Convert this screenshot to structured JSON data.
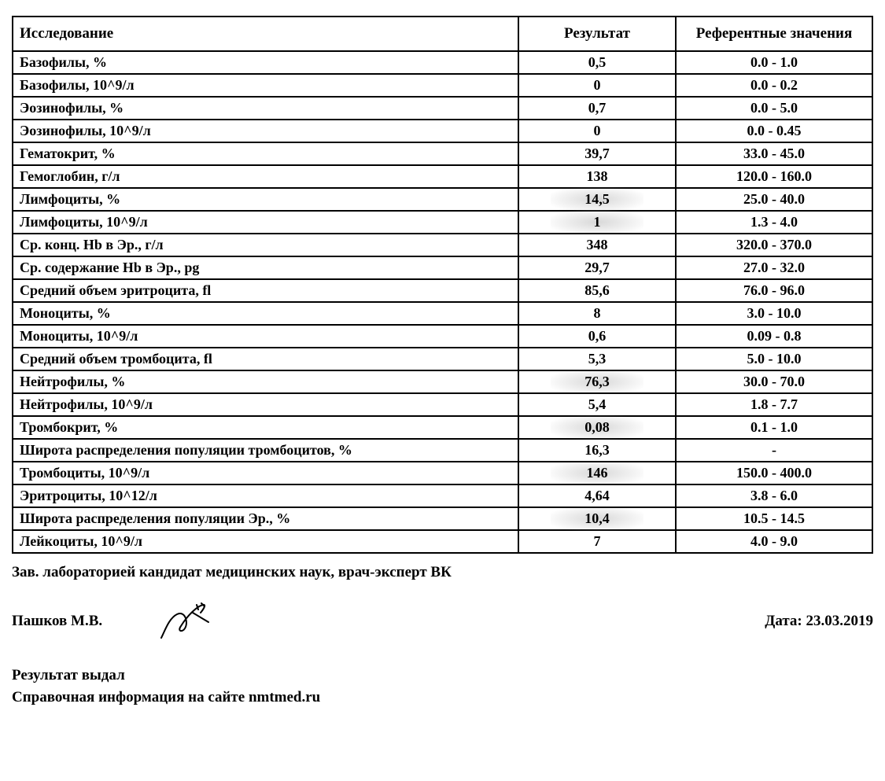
{
  "table": {
    "columns": [
      "Исследование",
      "Результат",
      "Референтные значения"
    ],
    "rows": [
      {
        "name": "Базофилы, %",
        "result": "0,5",
        "ref": "0.0 - 1.0",
        "hl": false
      },
      {
        "name": "Базофилы, 10^9/л",
        "result": "0",
        "ref": "0.0 - 0.2",
        "hl": false
      },
      {
        "name": "Эозинофилы, %",
        "result": "0,7",
        "ref": "0.0 - 5.0",
        "hl": false
      },
      {
        "name": "Эозинофилы, 10^9/л",
        "result": "0",
        "ref": "0.0 - 0.45",
        "hl": false
      },
      {
        "name": "Гематокрит, %",
        "result": "39,7",
        "ref": "33.0 - 45.0",
        "hl": false
      },
      {
        "name": "Гемоглобин, г/л",
        "result": "138",
        "ref": "120.0 - 160.0",
        "hl": false
      },
      {
        "name": "Лимфоциты, %",
        "result": "14,5",
        "ref": "25.0 - 40.0",
        "hl": true
      },
      {
        "name": "Лимфоциты, 10^9/л",
        "result": "1",
        "ref": "1.3 - 4.0",
        "hl": true
      },
      {
        "name": "Ср. конц. Hb в Эр., г/л",
        "result": "348",
        "ref": "320.0 - 370.0",
        "hl": false
      },
      {
        "name": "Ср. содержание Hb в Эр., pg",
        "result": "29,7",
        "ref": "27.0 - 32.0",
        "hl": false
      },
      {
        "name": "Средний объем эритроцита, fl",
        "result": "85,6",
        "ref": "76.0 - 96.0",
        "hl": false
      },
      {
        "name": "Моноциты, %",
        "result": "8",
        "ref": "3.0 - 10.0",
        "hl": false
      },
      {
        "name": "Моноциты, 10^9/л",
        "result": "0,6",
        "ref": "0.09 - 0.8",
        "hl": false
      },
      {
        "name": "Средний объем тромбоцита, fl",
        "result": "5,3",
        "ref": "5.0 - 10.0",
        "hl": false
      },
      {
        "name": "Нейтрофилы, %",
        "result": "76,3",
        "ref": "30.0 - 70.0",
        "hl": true
      },
      {
        "name": "Нейтрофилы, 10^9/л",
        "result": "5,4",
        "ref": "1.8 - 7.7",
        "hl": false
      },
      {
        "name": "Тромбокрит, %",
        "result": "0,08",
        "ref": "0.1 - 1.0",
        "hl": true
      },
      {
        "name": "Широта распределения популяции тромбоцитов, %",
        "result": "16,3",
        "ref": "-",
        "hl": false
      },
      {
        "name": "Тромбоциты, 10^9/л",
        "result": "146",
        "ref": "150.0 - 400.0",
        "hl": true
      },
      {
        "name": "Эритроциты, 10^12/л",
        "result": "4,64",
        "ref": "3.8 - 6.0",
        "hl": false
      },
      {
        "name": "Широта распределения популяции Эр., %",
        "result": "10,4",
        "ref": "10.5 - 14.5",
        "hl": true
      },
      {
        "name": "Лейкоциты, 10^9/л",
        "result": "7",
        "ref": "4.0 - 9.0",
        "hl": false
      }
    ]
  },
  "footer": {
    "head_title": "Зав. лабораторией кандидат медицинских наук, врач-эксперт ВК",
    "name": "Пашков М.В.",
    "date_label": "Дата: 23.03.2019",
    "issued_label": "Результат выдал",
    "info_label": "Справочная информация на сайте nmtmed.ru"
  },
  "style": {
    "font": "Georgia",
    "border_color": "#000000",
    "text_color": "#000000",
    "bg_color": "#ffffff",
    "smudge_color": "rgba(100,100,100,0.25)"
  }
}
